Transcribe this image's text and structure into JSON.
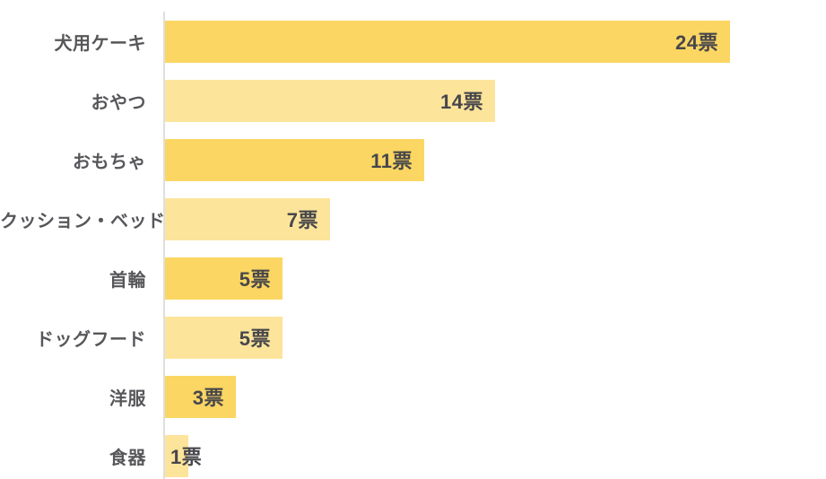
{
  "chart_data": {
    "type": "bar",
    "orientation": "horizontal",
    "title": "",
    "categories": [
      "犬用ケーキ",
      "おやつ",
      "おもちゃ",
      "クッション・ベッド",
      "首輪",
      "ドッグフード",
      "洋服",
      "食器"
    ],
    "values": [
      24,
      14,
      11,
      7,
      5,
      5,
      3,
      1
    ],
    "value_labels": [
      "24票",
      "14票",
      "11票",
      "7票",
      "5票",
      "5票",
      "3票",
      "1票"
    ],
    "unit": "票",
    "xlim": [
      0,
      24
    ],
    "grid": false,
    "legend": false,
    "value_label_position": "inside-end",
    "colors": {
      "bar_alternate_odd": "#FBD662",
      "bar_alternate_even": "#FCE49B",
      "category_label": "#57575B",
      "value_label": "#47474B",
      "axis_line": "#DFDFDF",
      "background": "#FFFFFF"
    }
  }
}
